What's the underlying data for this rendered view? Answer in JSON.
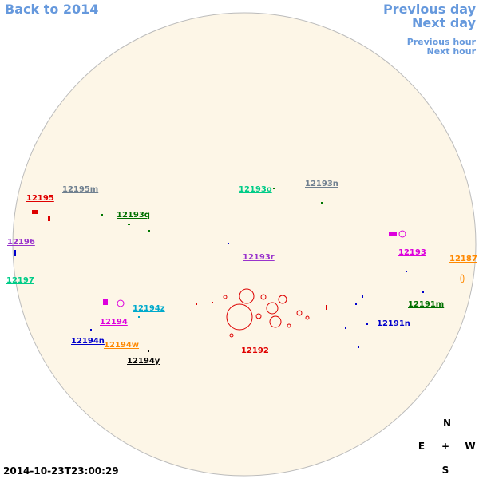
{
  "nav": {
    "back": "Back to 2014",
    "previous_day": "Previous day",
    "next_day": "Next day",
    "previous_hour": "Previous hour",
    "next_hour": "Next hour"
  },
  "regions": [
    {
      "label": "12195m",
      "color": "#708090"
    },
    {
      "label": "12195",
      "color": "#e00000"
    },
    {
      "label": "12193q",
      "color": "#007000"
    },
    {
      "label": "12193o",
      "color": "#00cc88"
    },
    {
      "label": "12193n",
      "color": "#708090"
    },
    {
      "label": "12196",
      "color": "#9933cc"
    },
    {
      "label": "12193r",
      "color": "#9933cc"
    },
    {
      "label": "12193",
      "color": "#dd00dd"
    },
    {
      "label": "12187",
      "color": "#ff8800"
    },
    {
      "label": "12197",
      "color": "#00cc88"
    },
    {
      "label": "12194z",
      "color": "#00aacc"
    },
    {
      "label": "12194",
      "color": "#dd00dd"
    },
    {
      "label": "12191m",
      "color": "#007000"
    },
    {
      "label": "12191n",
      "color": "#0000cc"
    },
    {
      "label": "12194n",
      "color": "#0000cc"
    },
    {
      "label": "12194w",
      "color": "#ff8800"
    },
    {
      "label": "12192",
      "color": "#e00000"
    },
    {
      "label": "12194y",
      "color": "#000000"
    }
  ],
  "compass": {
    "north": "N",
    "east": "E",
    "center": "+",
    "west": "W",
    "south": "S"
  },
  "timestamp": "2014-10-23T23:00:29"
}
